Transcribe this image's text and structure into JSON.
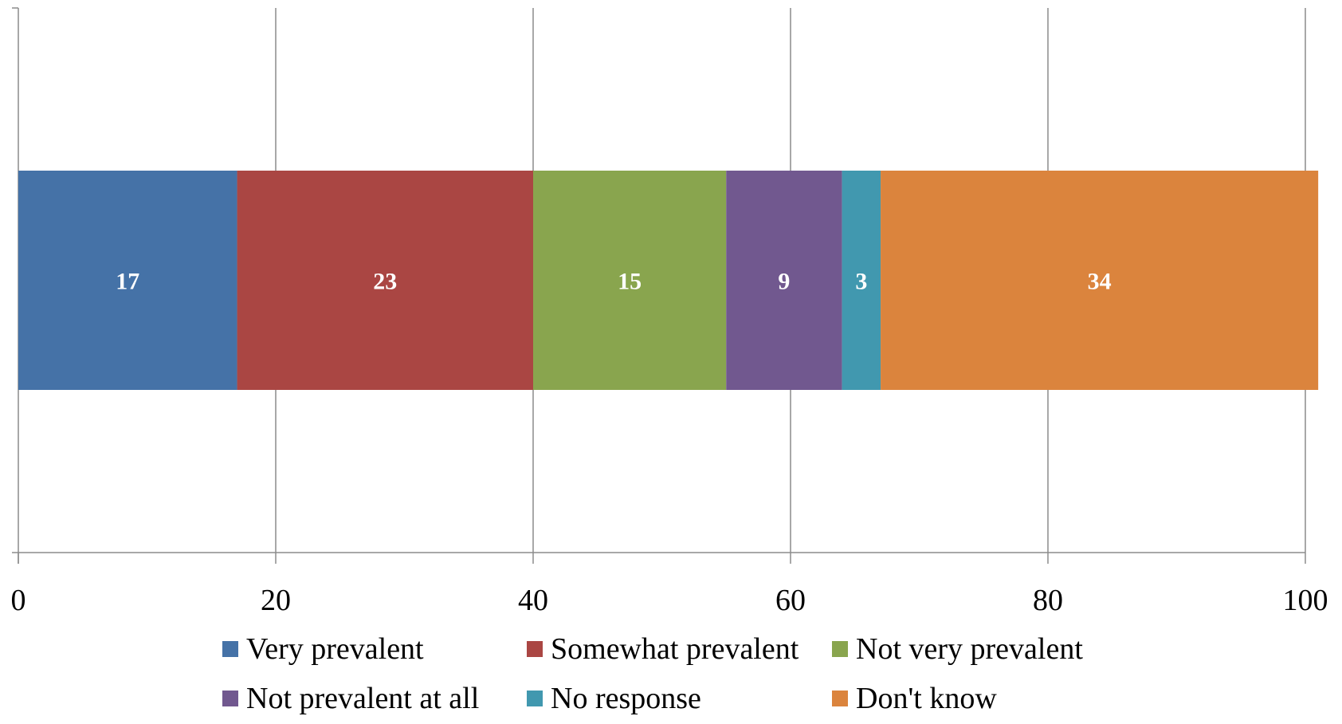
{
  "chart_data": {
    "type": "bar",
    "orientation": "horizontal",
    "stacked": true,
    "title": "",
    "xlabel": "",
    "ylabel": "",
    "xlim": [
      0,
      100
    ],
    "x_ticks": [
      0,
      20,
      40,
      60,
      80,
      100
    ],
    "x_tick_labels": [
      "0",
      "20",
      "40",
      "60",
      "80",
      "100"
    ],
    "grid": "vertical",
    "legend_position": "bottom",
    "categories": [
      ""
    ],
    "series": [
      {
        "name": "Very prevalent",
        "values": [
          17
        ],
        "color": "#4572A7",
        "label": "17"
      },
      {
        "name": "Somewhat prevalent",
        "values": [
          23
        ],
        "color": "#AA4643",
        "label": "23"
      },
      {
        "name": "Not very prevalent",
        "values": [
          15
        ],
        "color": "#89A54E",
        "label": "15"
      },
      {
        "name": "Not prevalent at all",
        "values": [
          9
        ],
        "color": "#71588F",
        "label": "9"
      },
      {
        "name": "No response",
        "values": [
          3
        ],
        "color": "#4198AF",
        "label": "3"
      },
      {
        "name": "Don't know",
        "values": [
          34
        ],
        "color": "#DB843D",
        "label": "34"
      }
    ]
  }
}
